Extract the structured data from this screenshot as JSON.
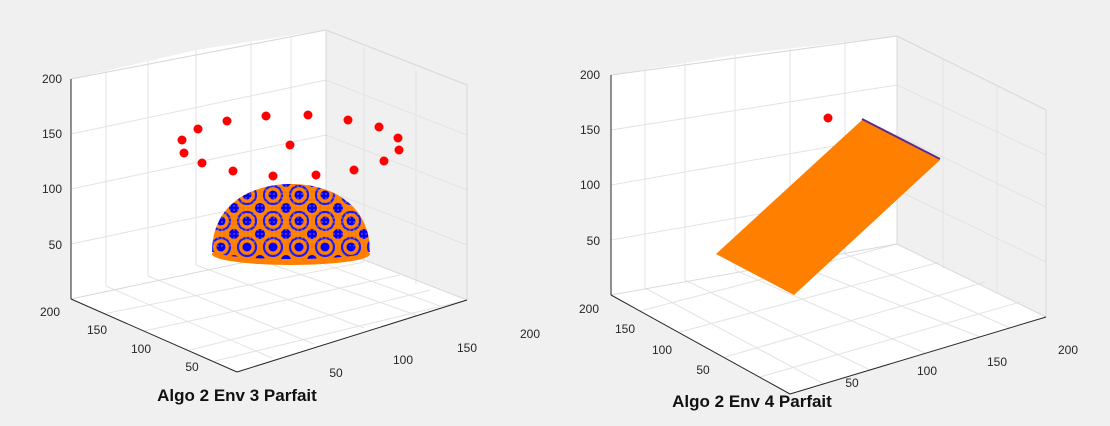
{
  "chart_data": [
    {
      "type": "scatter",
      "title": "Algo 2 Env 3 Parfait",
      "xlim": [
        0,
        200
      ],
      "ylim": [
        0,
        200
      ],
      "zlim": [
        0,
        200
      ],
      "x_ticks": [
        "50",
        "100",
        "150",
        "200"
      ],
      "y_ticks": [
        "50",
        "100",
        "150",
        "200"
      ],
      "z_ticks": [
        "50",
        "100",
        "150",
        "200"
      ],
      "grid": true,
      "view": "3d",
      "points_color": "#ff0000",
      "surface": "hemisphere",
      "surface_colors": [
        "#ff7f00",
        "#0000ff"
      ]
    },
    {
      "type": "scatter",
      "title": "Algo 2 Env 4 Parfait",
      "xlim": [
        0,
        200
      ],
      "ylim": [
        0,
        200
      ],
      "zlim": [
        0,
        200
      ],
      "x_ticks": [
        "50",
        "100",
        "150",
        "200"
      ],
      "y_ticks": [
        "50",
        "100",
        "150",
        "200"
      ],
      "z_ticks": [
        "50",
        "100",
        "150",
        "200"
      ],
      "grid": true,
      "view": "3d",
      "points_color": "#ff0000",
      "surface": "inclined plane",
      "surface_colors": [
        "#ff7f00",
        "#0000ff"
      ]
    }
  ]
}
